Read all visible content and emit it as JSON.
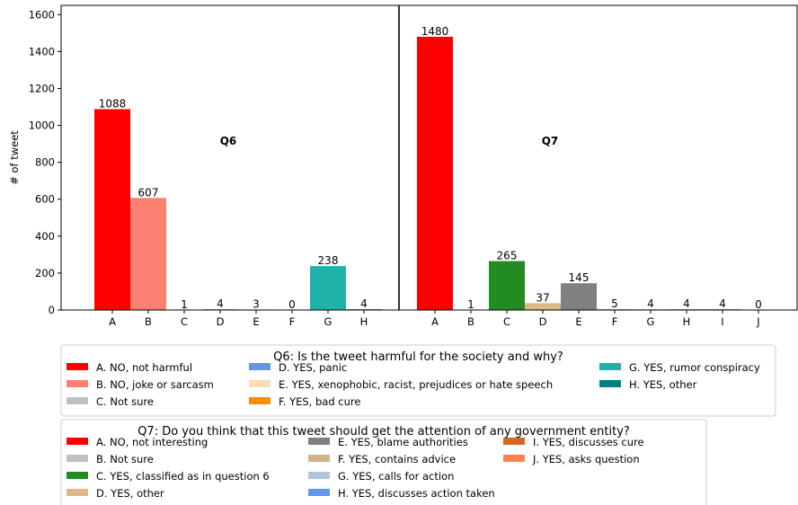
{
  "chart_data": {
    "type": "bar",
    "ylabel": "# of tweet",
    "ylim": [
      0,
      1650
    ],
    "yticks": [
      0,
      200,
      400,
      600,
      800,
      1000,
      1200,
      1400,
      1600
    ],
    "grid": false,
    "panels": [
      {
        "label": "Q6",
        "categories": [
          "A",
          "B",
          "C",
          "D",
          "E",
          "F",
          "G",
          "H"
        ],
        "values": [
          1088,
          607,
          1,
          4,
          3,
          0,
          238,
          4
        ],
        "colors": [
          "#ff0000",
          "#fa8072",
          "#c0c0c0",
          "#6495ed",
          "#f5deb3",
          "#ff8c00",
          "#20b2aa",
          "#008080"
        ],
        "legend": {
          "title": "Q6: Is the tweet harmful for the society and why?",
          "columns": 3,
          "entries": [
            "A. NO, not harmful",
            "B. NO, joke or sarcasm",
            "C. Not sure",
            "D. YES, panic",
            "E. YES, xenophobic, racist, prejudices or hate speech",
            "F. YES, bad cure",
            "G. YES, rumor conspiracy",
            "H. YES, other"
          ]
        }
      },
      {
        "label": "Q7",
        "categories": [
          "A",
          "B",
          "C",
          "D",
          "E",
          "F",
          "G",
          "H",
          "I",
          "J"
        ],
        "values": [
          1480,
          1,
          265,
          37,
          145,
          5,
          4,
          4,
          4,
          0
        ],
        "colors": [
          "#ff0000",
          "#c0c0c0",
          "#228b22",
          "#deb887",
          "#808080",
          "#d2b48c",
          "#b0c4de",
          "#6495ed",
          "#d2691e",
          "#ff7f50"
        ],
        "legend": {
          "title": "Q7: Do you think that this tweet should get the attention of any government entity?",
          "columns": 3,
          "entries": [
            "A. NO, not interesting",
            "B. Not sure",
            "C. YES, classified as in question 6",
            "D. YES, other",
            "E. YES, blame authorities",
            "F. YES, contains advice",
            "G. YES, calls for action",
            "H. YES, discusses action taken",
            "I. YES, discusses cure",
            "J. YES, asks question"
          ]
        }
      }
    ]
  }
}
